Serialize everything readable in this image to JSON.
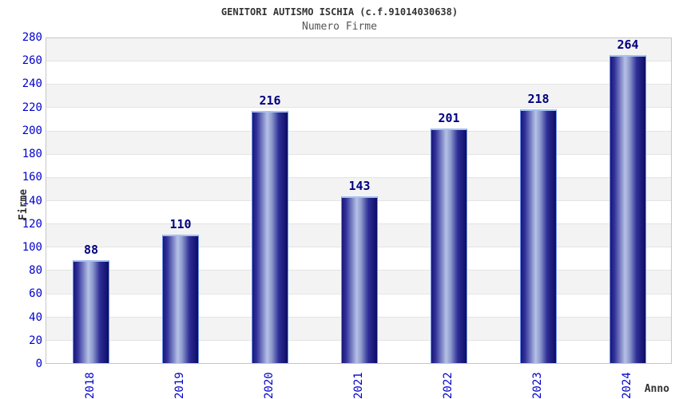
{
  "chart_data": {
    "type": "bar",
    "title": "GENITORI AUTISMO ISCHIA (c.f.91014030638)",
    "subtitle": "Numero Firme",
    "xlabel": "Anno",
    "ylabel": "Firme",
    "categories": [
      "2018",
      "2019",
      "2020",
      "2021",
      "2022",
      "2023",
      "2024"
    ],
    "values": [
      88,
      110,
      216,
      143,
      201,
      218,
      264
    ],
    "ylim": [
      0,
      280
    ],
    "ytick_step": 20,
    "yticks": [
      0,
      20,
      40,
      60,
      80,
      100,
      120,
      140,
      160,
      180,
      200,
      220,
      240,
      260,
      280
    ],
    "grid": "alternating-horizontal-bands",
    "legend": "none",
    "colors": {
      "bar_edge_dark": "#0c0c66",
      "bar_highlight": "#b6c1e6",
      "bar_border": "#6d92ea",
      "tick_label": "#0000cc",
      "value_label": "#000080",
      "band_gray": "#f3f3f3",
      "band_white": "#ffffff",
      "grid_line": "#e4e4e4",
      "plot_border": "#c6c6c6",
      "title_color": "#333333",
      "subtitle_color": "#555555",
      "axis_title_color": "#333333"
    }
  }
}
